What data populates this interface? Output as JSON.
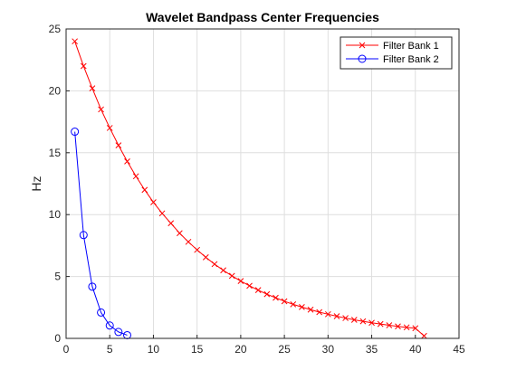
{
  "chart_data": {
    "type": "line",
    "title": "Wavelet Bandpass Center Frequencies",
    "xlabel": "",
    "ylabel": "Hz",
    "xlim": [
      0,
      45
    ],
    "ylim": [
      0,
      25
    ],
    "xticks": [
      0,
      5,
      10,
      15,
      20,
      25,
      30,
      35,
      40,
      45
    ],
    "yticks": [
      0,
      5,
      10,
      15,
      20,
      25
    ],
    "grid": true,
    "legend_position": "top-right",
    "series": [
      {
        "name": "Filter Bank 1",
        "color": "#ff0000",
        "marker": "x",
        "x": [
          1,
          2,
          3,
          4,
          5,
          6,
          7,
          8,
          9,
          10,
          11,
          12,
          13,
          14,
          15,
          16,
          17,
          18,
          19,
          20,
          21,
          22,
          23,
          24,
          25,
          26,
          27,
          28,
          29,
          30,
          31,
          32,
          33,
          34,
          35,
          36,
          37,
          38,
          39,
          40,
          41
        ],
        "values": [
          24.0,
          22.0,
          20.2,
          18.5,
          17.0,
          15.6,
          14.3,
          13.1,
          12.0,
          11.0,
          10.1,
          9.3,
          8.5,
          7.8,
          7.15,
          6.55,
          6.0,
          5.5,
          5.05,
          4.63,
          4.25,
          3.9,
          3.57,
          3.28,
          3.0,
          2.75,
          2.53,
          2.32,
          2.12,
          1.95,
          1.79,
          1.64,
          1.5,
          1.38,
          1.26,
          1.16,
          1.06,
          0.97,
          0.89,
          0.82,
          0.2
        ]
      },
      {
        "name": "Filter Bank 2",
        "color": "#0000ff",
        "marker": "o",
        "x": [
          1,
          2,
          3,
          4,
          5,
          6,
          7
        ],
        "values": [
          16.7,
          8.35,
          4.18,
          2.09,
          1.04,
          0.52,
          0.26
        ]
      }
    ]
  }
}
